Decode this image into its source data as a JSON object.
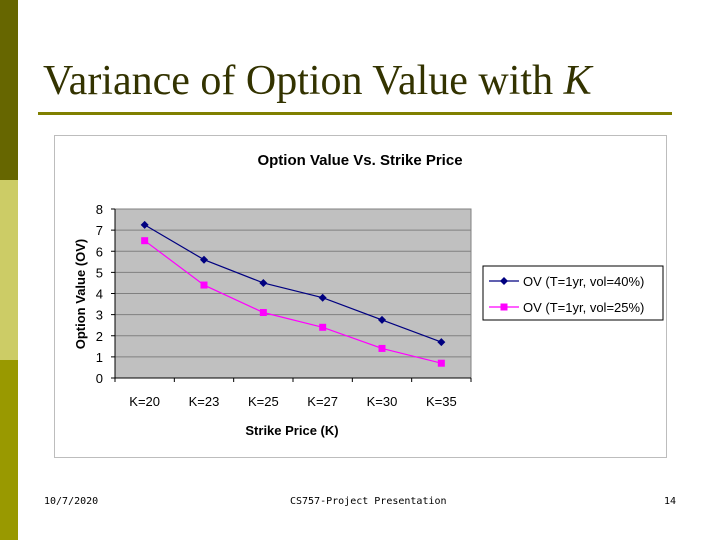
{
  "slide": {
    "title_main": "Variance of Option Value with ",
    "title_var": "K",
    "footer_date": "10/7/2020",
    "footer_center": "CS757-Project Presentation",
    "footer_page": "14"
  },
  "colors": {
    "plot_bg": "#c0c0c0",
    "gridline": "#808080",
    "series1": "#000080",
    "series2": "#ff00ff"
  },
  "chart_data": {
    "type": "line",
    "title": "Option Value Vs. Strike Price",
    "xlabel": "Strike Price (K)",
    "ylabel": "Option Value (OV)",
    "categories": [
      "K=20",
      "K=23",
      "K=25",
      "K=27",
      "K=30",
      "K=35"
    ],
    "ylim": [
      0,
      8
    ],
    "yticks": [
      0,
      1,
      2,
      3,
      4,
      5,
      6,
      7,
      8
    ],
    "grid": true,
    "legend_position": "right",
    "series": [
      {
        "name": "OV (T=1yr, vol=40%)",
        "marker": "diamond",
        "values": [
          7.25,
          5.6,
          4.5,
          3.8,
          2.75,
          1.7
        ]
      },
      {
        "name": "OV (T=1yr, vol=25%)",
        "marker": "square",
        "values": [
          6.5,
          4.4,
          3.1,
          2.4,
          1.4,
          0.7
        ]
      }
    ]
  }
}
